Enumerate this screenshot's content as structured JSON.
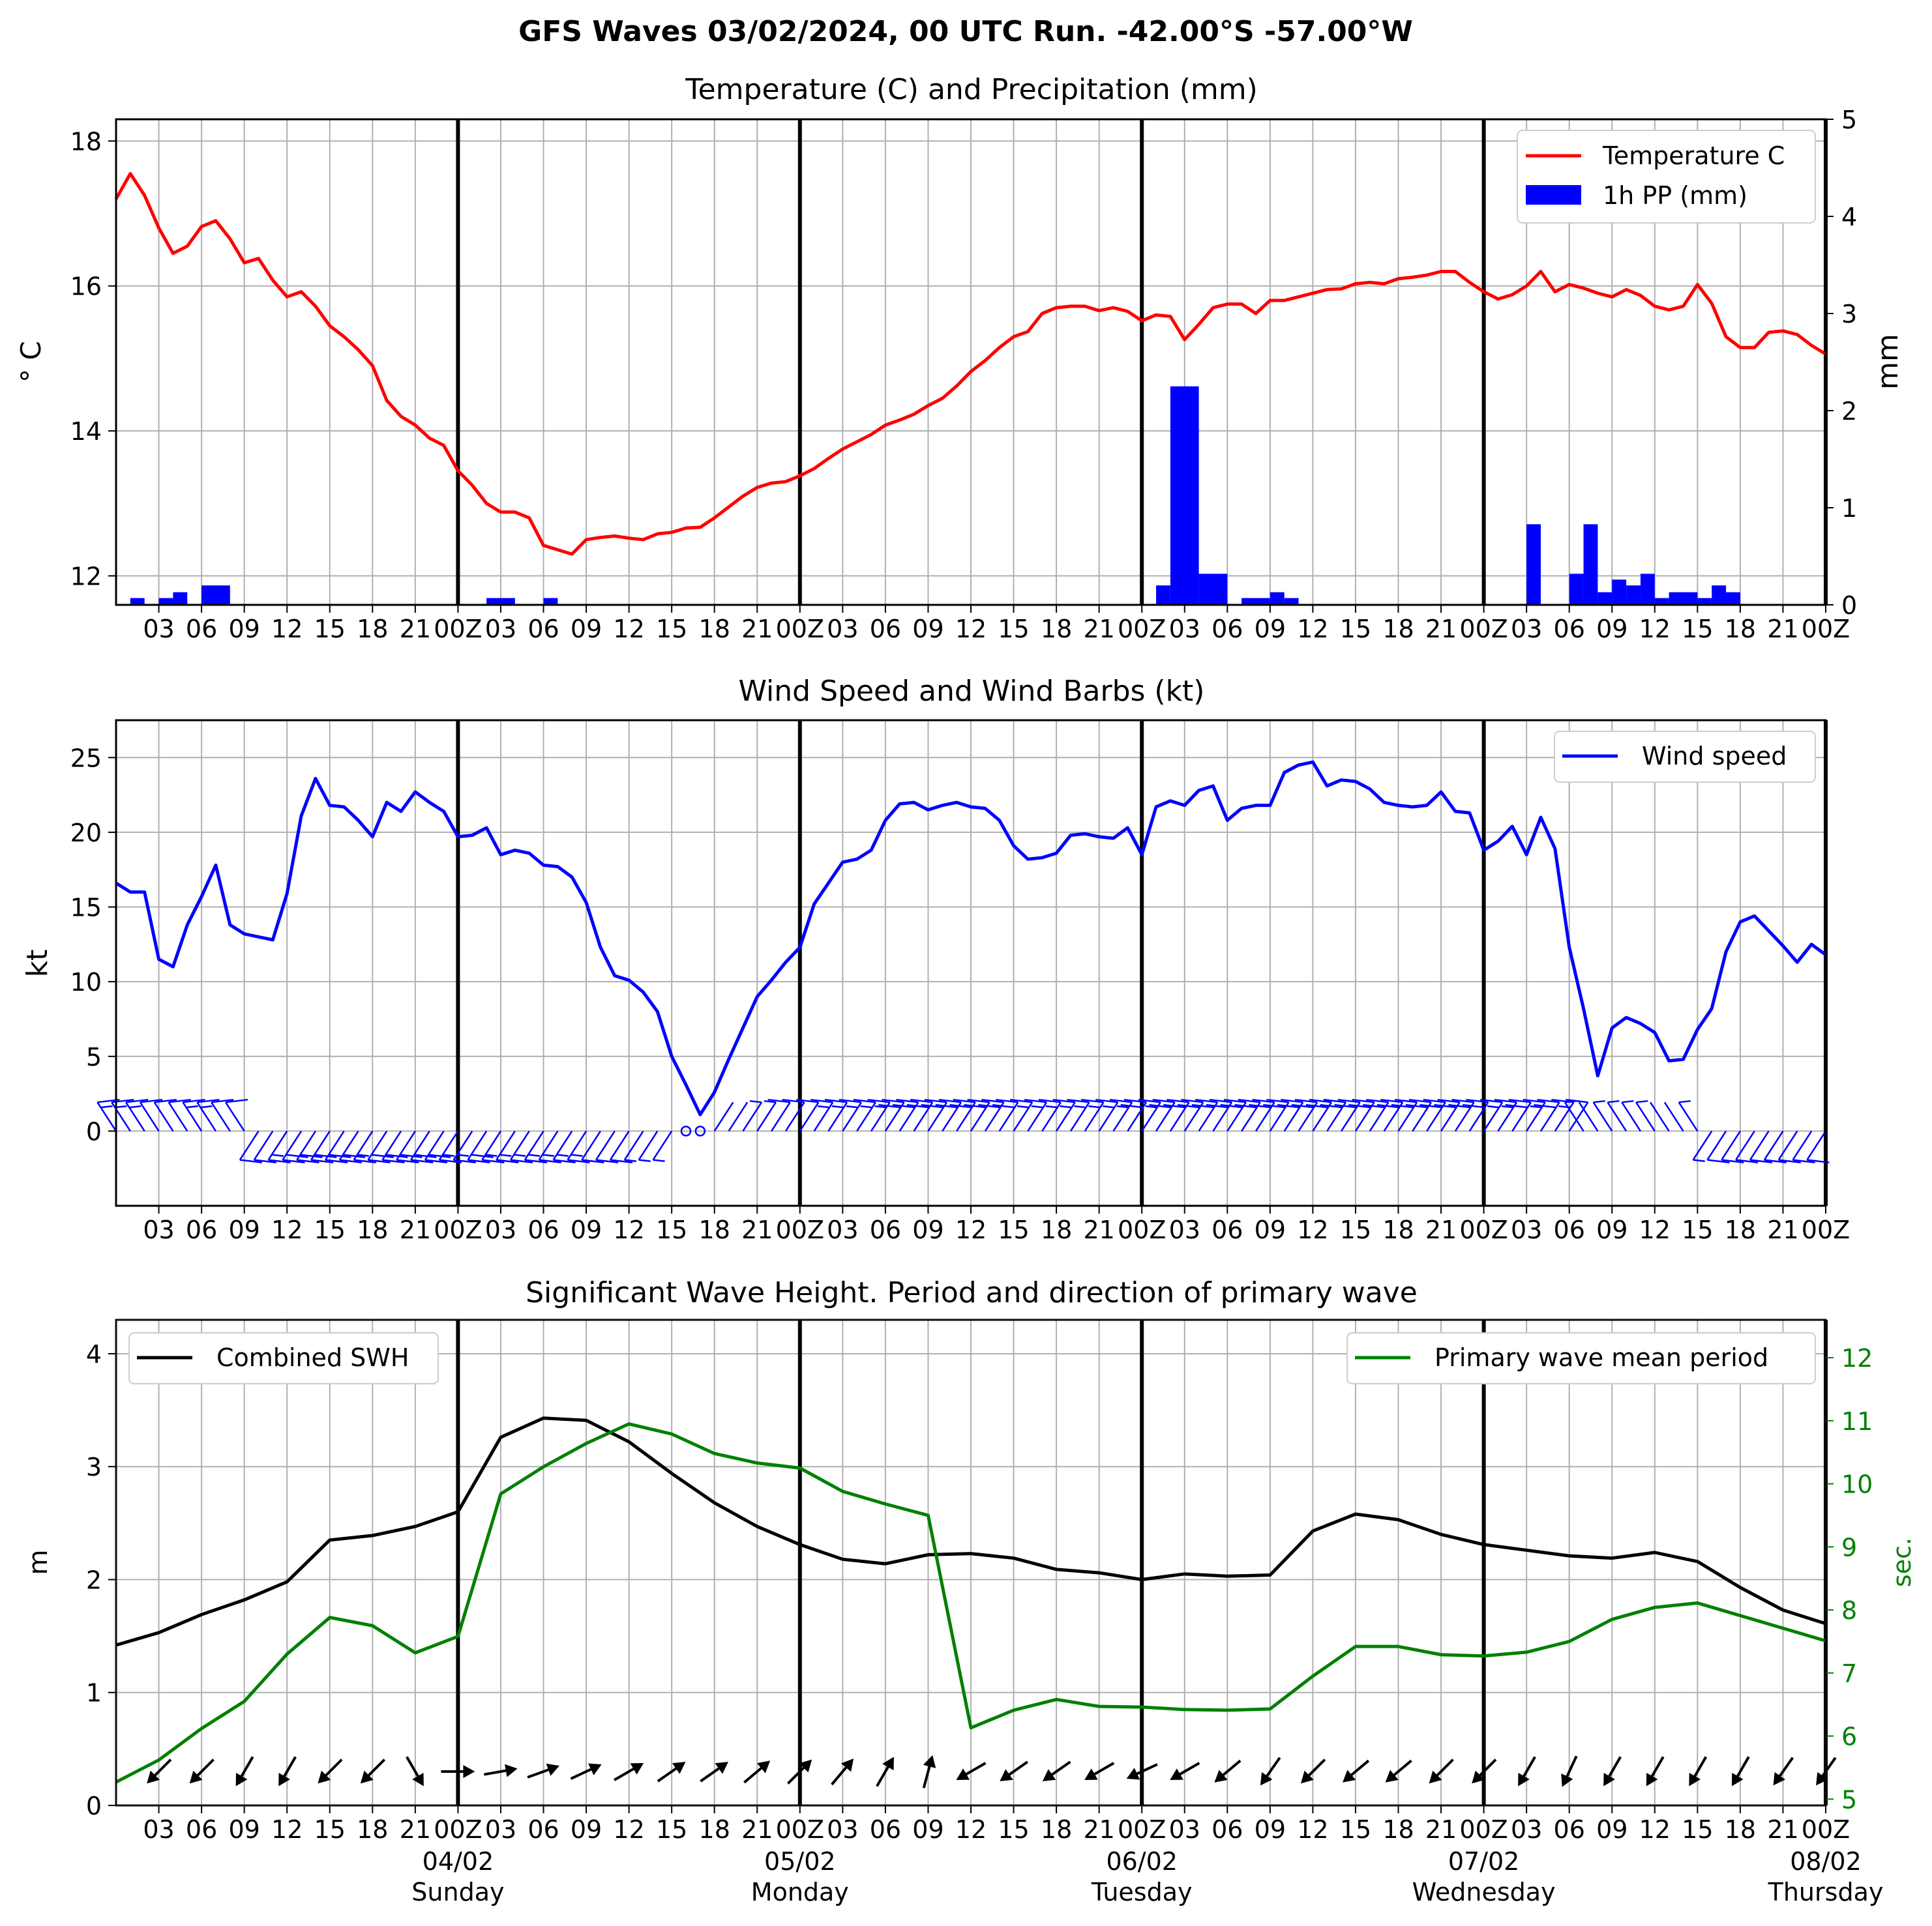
{
  "figure_title": "GFS Waves 03/02/2024, 00 UTC Run. -42.00°S -57.00°W",
  "colors": {
    "temperature": "#ff0000",
    "precip": "#0000ff",
    "wind": "#0000ff",
    "swh": "#000000",
    "period": "#008000",
    "grid": "#b0b0b0"
  },
  "time_axis": {
    "hour_ticks": [
      "03",
      "06",
      "09",
      "12",
      "15",
      "18",
      "21",
      "00Z",
      "03",
      "06",
      "09",
      "12",
      "15",
      "18",
      "21",
      "00Z",
      "03",
      "06",
      "09",
      "12",
      "15",
      "18",
      "21",
      "00Z",
      "03",
      "06",
      "09",
      "12",
      "15",
      "18",
      "21",
      "00Z",
      "03",
      "06",
      "09",
      "12",
      "15",
      "18",
      "21",
      "00Z"
    ],
    "date_labels": [
      "04/02",
      "05/02",
      "06/02",
      "07/02",
      "08/02"
    ],
    "day_labels": [
      "Sunday",
      "Monday",
      "Tuesday",
      "Wednesday",
      "Thursday"
    ]
  },
  "chart_data": [
    {
      "type": "line",
      "title": "Temperature (C) and Precipitation (mm)",
      "ylabel": "$^\\circ$C",
      "ylabel_display": "° C",
      "y2label": "mm",
      "ylim": [
        11.6,
        18.3
      ],
      "yticks": [
        "12",
        "14",
        "16",
        "18"
      ],
      "y2lim": [
        0,
        5
      ],
      "y2ticks": [
        "0",
        "1",
        "2",
        "3",
        "4",
        "5"
      ],
      "x_hours_range": [
        0,
        120
      ],
      "grid": true,
      "legend_position": "upper right",
      "series": [
        {
          "name": "Temperature C",
          "x_hours": [
            0,
            1,
            2,
            3,
            4,
            5,
            6,
            7,
            8,
            9,
            10,
            11,
            12,
            13,
            14,
            15,
            16,
            17,
            18,
            19,
            20,
            21,
            22,
            23,
            24,
            25,
            26,
            27,
            28,
            29,
            30,
            31,
            32,
            33,
            34,
            35,
            36,
            37,
            38,
            39,
            40,
            41,
            42,
            43,
            44,
            45,
            46,
            47,
            48,
            49,
            50,
            51,
            52,
            53,
            54,
            55,
            56,
            57,
            58,
            59,
            60,
            61,
            62,
            63,
            64,
            65,
            66,
            67,
            68,
            69,
            70,
            71,
            72,
            73,
            74,
            75,
            76,
            77,
            78,
            79,
            80,
            81,
            82,
            83,
            84,
            85,
            86,
            87,
            88,
            89,
            90,
            91,
            92,
            93,
            94,
            95,
            96,
            97,
            98,
            99,
            100,
            101,
            102,
            103,
            104,
            105,
            106,
            107,
            108,
            109,
            110,
            111,
            112,
            113,
            114,
            115,
            116,
            117,
            118,
            119,
            120
          ],
          "values": [
            17.2,
            17.55,
            17.25,
            16.8,
            16.45,
            16.55,
            16.82,
            16.9,
            16.65,
            16.32,
            16.38,
            16.08,
            15.85,
            15.92,
            15.72,
            15.45,
            15.3,
            15.12,
            14.9,
            14.42,
            14.2,
            14.08,
            13.9,
            13.8,
            13.45,
            13.25,
            13.0,
            12.88,
            12.88,
            12.8,
            12.42,
            12.36,
            12.3,
            12.5,
            12.53,
            12.55,
            12.52,
            12.5,
            12.58,
            12.6,
            12.66,
            12.67,
            12.8,
            12.95,
            13.1,
            13.22,
            13.28,
            13.3,
            13.38,
            13.48,
            13.62,
            13.75,
            13.85,
            13.95,
            14.08,
            14.15,
            14.23,
            14.35,
            14.45,
            14.62,
            14.82,
            14.97,
            15.15,
            15.3,
            15.37,
            15.62,
            15.7,
            15.72,
            15.72,
            15.66,
            15.7,
            15.65,
            15.52,
            15.6,
            15.58,
            15.26,
            15.47,
            15.7,
            15.75,
            15.75,
            15.62,
            15.8,
            15.8,
            15.85,
            15.9,
            15.95,
            15.96,
            16.03,
            16.05,
            16.03,
            16.1,
            16.12,
            16.15,
            16.2,
            16.2,
            16.05,
            15.92,
            15.82,
            15.88,
            16.0,
            16.2,
            15.92,
            16.02,
            15.97,
            15.9,
            15.85,
            15.95,
            15.87,
            15.72,
            15.67,
            15.72,
            16.02,
            15.76,
            15.3,
            15.15,
            15.15,
            15.36,
            15.38,
            15.33,
            15.18,
            15.06
          ]
        },
        {
          "name": "1h PP (mm)",
          "type": "bar",
          "bars": [
            {
              "start_h": 1,
              "end_h": 2,
              "mm": 0.07
            },
            {
              "start_h": 3,
              "end_h": 4,
              "mm": 0.07
            },
            {
              "start_h": 4,
              "end_h": 5,
              "mm": 0.13
            },
            {
              "start_h": 6,
              "end_h": 8,
              "mm": 0.2
            },
            {
              "start_h": 26,
              "end_h": 28,
              "mm": 0.07
            },
            {
              "start_h": 30,
              "end_h": 31,
              "mm": 0.07
            },
            {
              "start_h": 73,
              "end_h": 74,
              "mm": 0.2
            },
            {
              "start_h": 74,
              "end_h": 76,
              "mm": 2.25
            },
            {
              "start_h": 76,
              "end_h": 78,
              "mm": 0.32
            },
            {
              "start_h": 79,
              "end_h": 81,
              "mm": 0.07
            },
            {
              "start_h": 81,
              "end_h": 82,
              "mm": 0.13
            },
            {
              "start_h": 82,
              "end_h": 83,
              "mm": 0.07
            },
            {
              "start_h": 99,
              "end_h": 100,
              "mm": 0.83
            },
            {
              "start_h": 102,
              "end_h": 103,
              "mm": 0.32
            },
            {
              "start_h": 103,
              "end_h": 104,
              "mm": 0.83
            },
            {
              "start_h": 104,
              "end_h": 105,
              "mm": 0.13
            },
            {
              "start_h": 105,
              "end_h": 106,
              "mm": 0.26
            },
            {
              "start_h": 106,
              "end_h": 107,
              "mm": 0.2
            },
            {
              "start_h": 107,
              "end_h": 108,
              "mm": 0.32
            },
            {
              "start_h": 108,
              "end_h": 109,
              "mm": 0.07
            },
            {
              "start_h": 109,
              "end_h": 111,
              "mm": 0.13
            },
            {
              "start_h": 111,
              "end_h": 112,
              "mm": 0.07
            },
            {
              "start_h": 112,
              "end_h": 113,
              "mm": 0.2
            },
            {
              "start_h": 113,
              "end_h": 114,
              "mm": 0.13
            }
          ]
        }
      ]
    },
    {
      "type": "line",
      "title": "Wind Speed and Wind Barbs (kt)",
      "ylabel": "kt",
      "ylim": [
        -5,
        27.5
      ],
      "yticks": [
        "0",
        "5",
        "10",
        "15",
        "20",
        "25"
      ],
      "x_hours_range": [
        0,
        120
      ],
      "grid": true,
      "legend_position": "upper right",
      "series": [
        {
          "name": "Wind speed",
          "x_hours": [
            0,
            1,
            2,
            3,
            4,
            5,
            6,
            7,
            8,
            9,
            10,
            11,
            12,
            13,
            14,
            15,
            16,
            17,
            18,
            19,
            20,
            21,
            22,
            23,
            24,
            25,
            26,
            27,
            28,
            29,
            30,
            31,
            32,
            33,
            34,
            35,
            36,
            37,
            38,
            39,
            40,
            41,
            42,
            43,
            44,
            45,
            46,
            47,
            48,
            49,
            50,
            51,
            52,
            53,
            54,
            55,
            56,
            57,
            58,
            59,
            60,
            61,
            62,
            63,
            64,
            65,
            66,
            67,
            68,
            69,
            70,
            71,
            72,
            73,
            74,
            75,
            76,
            77,
            78,
            79,
            80,
            81,
            82,
            83,
            84,
            85,
            86,
            87,
            88,
            89,
            90,
            91,
            92,
            93,
            94,
            95,
            96,
            97,
            98,
            99,
            100,
            101,
            102,
            103,
            104,
            105,
            106,
            107,
            108,
            109,
            110,
            111,
            112,
            113,
            114,
            115,
            116,
            117,
            118,
            119,
            120
          ],
          "values": [
            16.6,
            16.0,
            16.0,
            11.5,
            11.0,
            13.8,
            15.7,
            17.8,
            13.8,
            13.2,
            13.0,
            12.8,
            15.9,
            21.1,
            23.6,
            21.8,
            21.7,
            20.8,
            19.7,
            22.0,
            21.4,
            22.7,
            22.0,
            21.4,
            19.7,
            19.8,
            20.3,
            18.5,
            18.8,
            18.6,
            17.8,
            17.7,
            17.0,
            15.3,
            12.3,
            10.4,
            10.1,
            9.3,
            8.0,
            5.0,
            3.1,
            1.1,
            2.6,
            4.8,
            6.9,
            9.0,
            10.1,
            11.3,
            12.3,
            15.2,
            16.6,
            18.0,
            18.2,
            18.8,
            20.8,
            21.9,
            22.0,
            21.5,
            21.8,
            22.0,
            21.7,
            21.6,
            20.8,
            19.1,
            18.2,
            18.3,
            18.6,
            19.8,
            19.9,
            19.7,
            19.6,
            20.3,
            18.5,
            21.7,
            22.1,
            21.8,
            22.8,
            23.1,
            20.8,
            21.6,
            21.8,
            21.8,
            24.0,
            24.5,
            24.7,
            23.1,
            23.5,
            23.4,
            22.9,
            22.0,
            21.8,
            21.7,
            21.8,
            22.7,
            21.4,
            21.3,
            18.8,
            19.4,
            20.4,
            18.5,
            21.0,
            18.9,
            12.3,
            8.2,
            3.7,
            6.9,
            7.6,
            7.2,
            6.6,
            4.7,
            4.8,
            6.8,
            8.2,
            12.0,
            14.0,
            14.4,
            13.4,
            12.4,
            11.3,
            12.5,
            11.8
          ]
        }
      ],
      "wind_barbs": {
        "note": "barbs drawn along zero line; direction follows series period",
        "x_hours_start": 0,
        "x_hours_end": 120,
        "segments": [
          {
            "from_h": 0,
            "to_h": 10,
            "dir": "from-north-west"
          },
          {
            "from_h": 10,
            "to_h": 40,
            "dir": "from-south-west"
          },
          {
            "from_h": 40,
            "to_h": 42,
            "dir": "calm"
          },
          {
            "from_h": 42,
            "to_h": 103,
            "dir": "from-north-east"
          },
          {
            "from_h": 103,
            "to_h": 112,
            "dir": "from-north-west"
          },
          {
            "from_h": 112,
            "to_h": 120,
            "dir": "from-south-west"
          }
        ]
      }
    },
    {
      "type": "line",
      "title": "Significant Wave Height. Period and direction of primary wave",
      "ylabel": "m",
      "y2label": "sec.",
      "ylim": [
        0,
        4.3
      ],
      "yticks": [
        "0",
        "1",
        "2",
        "3",
        "4"
      ],
      "y2lim": [
        4.9,
        12.6
      ],
      "y2ticks": [
        "5",
        "6",
        "7",
        "8",
        "9",
        "10",
        "11",
        "12"
      ],
      "x_hours_range": [
        0,
        120
      ],
      "grid": true,
      "series": [
        {
          "name": "Combined SWH",
          "legend_position": "upper left",
          "x_hours": [
            0,
            3,
            6,
            9,
            12,
            15,
            18,
            21,
            24,
            27,
            30,
            33,
            36,
            39,
            42,
            45,
            48,
            51,
            54,
            57,
            60,
            63,
            66,
            69,
            72,
            75,
            78,
            81,
            84,
            87,
            90,
            93,
            96,
            99,
            102,
            105,
            108,
            111,
            114,
            117,
            120
          ],
          "values": [
            1.42,
            1.53,
            1.69,
            1.82,
            1.98,
            2.35,
            2.39,
            2.47,
            2.6,
            3.26,
            3.43,
            3.41,
            3.22,
            2.94,
            2.68,
            2.47,
            2.31,
            2.18,
            2.14,
            2.22,
            2.23,
            2.19,
            2.09,
            2.06,
            2.0,
            2.05,
            2.03,
            2.04,
            2.43,
            2.58,
            2.53,
            2.4,
            2.31,
            2.26,
            2.21,
            2.19,
            2.24,
            2.16,
            1.93,
            1.73,
            1.61
          ]
        },
        {
          "name": "Primary wave mean period",
          "legend_position": "upper right",
          "axis": "y2",
          "x_hours": [
            0,
            3,
            6,
            9,
            12,
            15,
            18,
            21,
            24,
            27,
            30,
            33,
            36,
            39,
            42,
            45,
            48,
            51,
            54,
            57,
            60,
            63,
            66,
            69,
            72,
            75,
            78,
            81,
            84,
            87,
            90,
            93,
            96,
            99,
            102,
            105,
            108,
            111,
            114,
            117,
            120
          ],
          "values": [
            5.27,
            5.62,
            6.12,
            6.55,
            7.3,
            7.88,
            7.75,
            7.32,
            7.58,
            9.84,
            10.27,
            10.64,
            10.95,
            10.79,
            10.48,
            10.33,
            10.25,
            9.88,
            9.68,
            9.5,
            6.13,
            6.41,
            6.58,
            6.47,
            6.46,
            6.42,
            6.41,
            6.43,
            6.95,
            7.42,
            7.42,
            7.29,
            7.27,
            7.33,
            7.5,
            7.85,
            8.04,
            8.11,
            7.91,
            7.71,
            7.51
          ]
        }
      ],
      "wave_direction_arrows": {
        "x_hours": [
          3,
          6,
          9,
          12,
          15,
          18,
          21,
          24,
          27,
          30,
          33,
          36,
          39,
          42,
          45,
          48,
          51,
          54,
          57,
          60,
          63,
          66,
          69,
          72,
          75,
          78,
          81,
          84,
          87,
          90,
          93,
          96,
          99,
          102,
          105,
          108,
          111,
          114,
          117,
          120
        ],
        "heading_deg": [
          225,
          225,
          210,
          210,
          225,
          225,
          150,
          90,
          80,
          70,
          65,
          60,
          55,
          55,
          50,
          45,
          40,
          30,
          15,
          240,
          235,
          235,
          240,
          245,
          240,
          230,
          215,
          225,
          230,
          230,
          225,
          225,
          210,
          205,
          210,
          210,
          210,
          210,
          215,
          215
        ]
      }
    }
  ]
}
